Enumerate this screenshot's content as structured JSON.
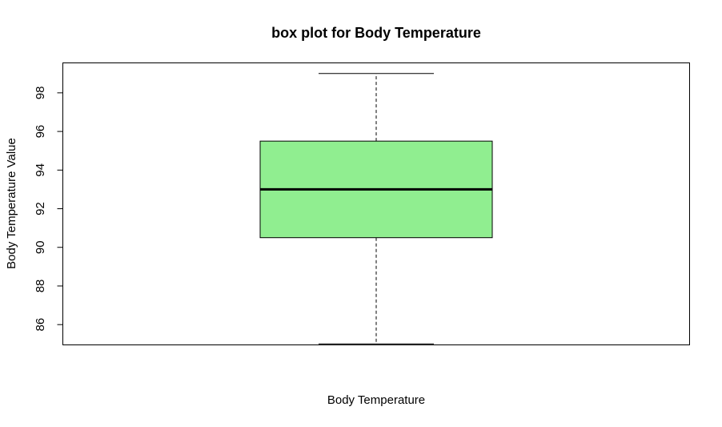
{
  "chart_data": {
    "type": "box",
    "title": "box plot for Body Temperature",
    "xlabel": "Body Temperature",
    "ylabel": "Body Temperature Value",
    "ylim": [
      84.95,
      99.55
    ],
    "yticks": [
      86,
      88,
      90,
      92,
      94,
      96,
      98
    ],
    "series": [
      {
        "whisker_low": 85,
        "q1": 90.5,
        "median": 93,
        "q3": 95.5,
        "whisker_high": 99
      }
    ],
    "colors": {
      "box_fill": "#90EE90",
      "stroke": "#000000"
    },
    "grid": false
  }
}
